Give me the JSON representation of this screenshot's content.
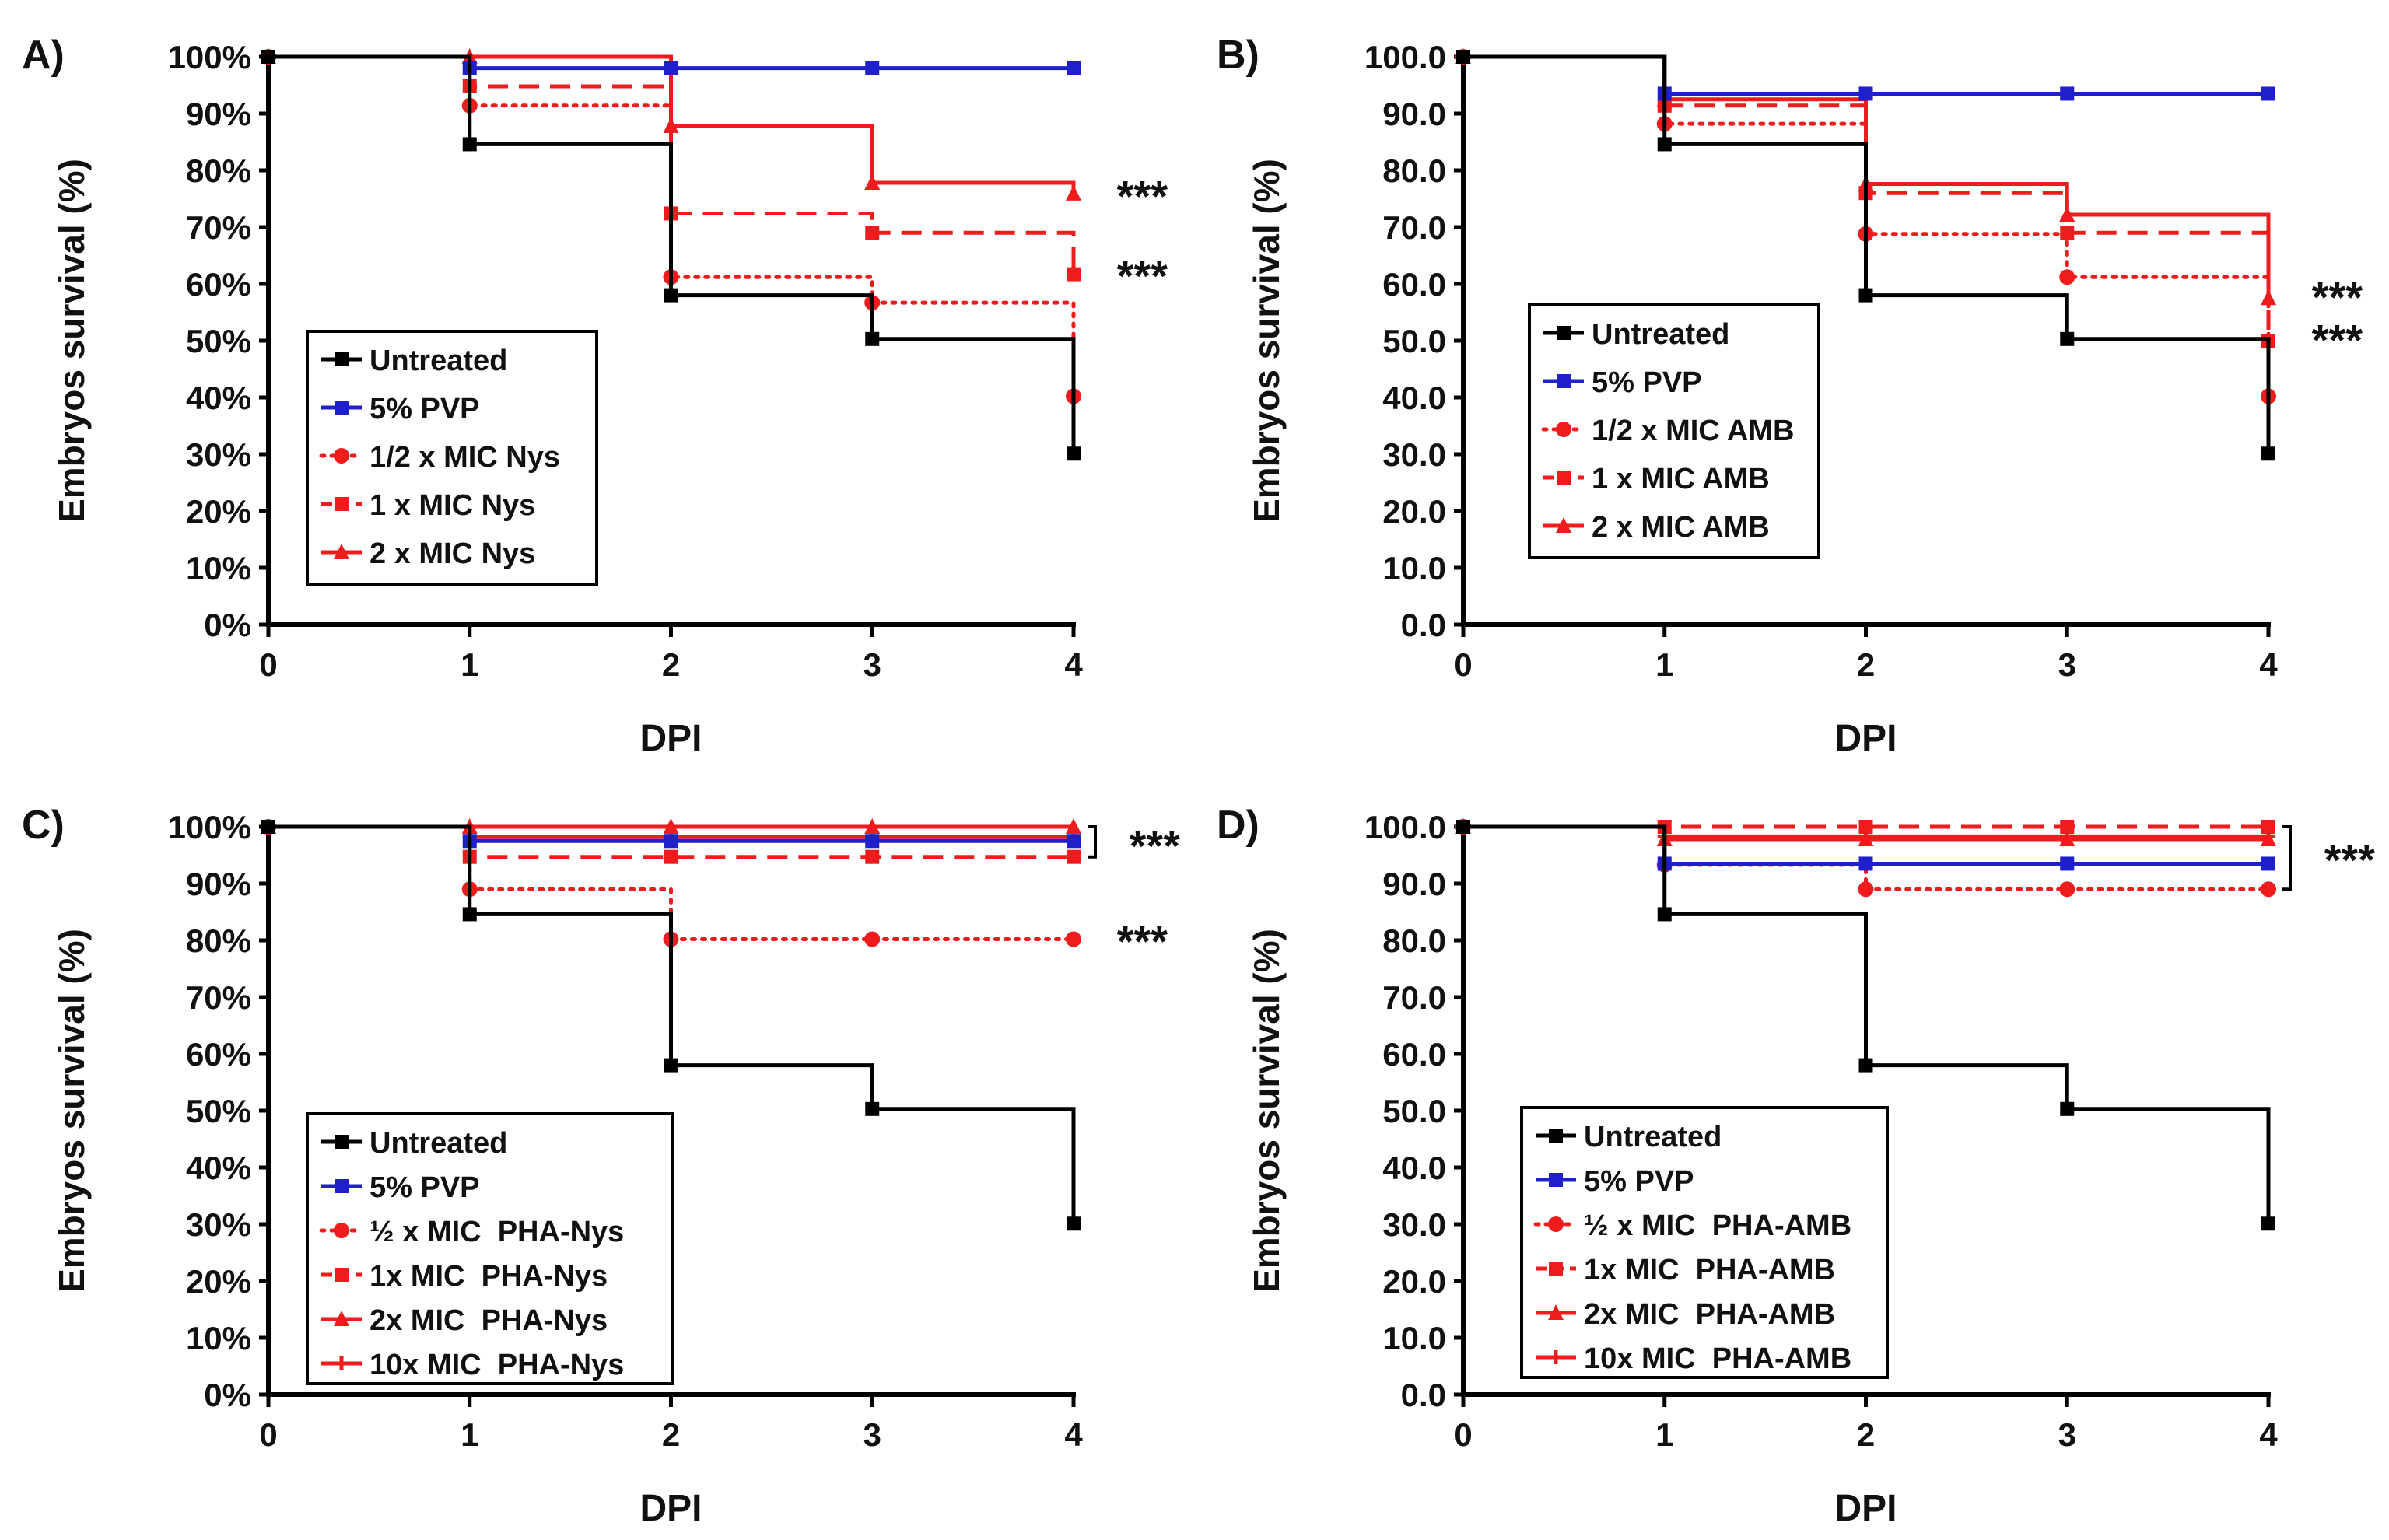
{
  "figure": {
    "panels": [
      {
        "letter": "A)",
        "ylabel": "Embryos survival (%)",
        "xlabel": "DPI",
        "ytick_format": "percent"
      },
      {
        "letter": "B)",
        "ylabel": "Embryos survival (%)",
        "xlabel": "DPI",
        "ytick_format": "decimal"
      },
      {
        "letter": "C)",
        "ylabel": "Embryos survival (%)",
        "xlabel": "DPI",
        "ytick_format": "percent"
      },
      {
        "letter": "D)",
        "ylabel": "Embryos survival (%)",
        "xlabel": "DPI",
        "ytick_format": "decimal"
      }
    ]
  },
  "colors": {
    "untreated": "#000000",
    "pvp": "#1f1fcc",
    "treated": "#ee1c1c"
  },
  "chart_data": [
    {
      "type": "line",
      "title": "",
      "panel_label": "A)",
      "xlabel": "DPI",
      "ylabel": "Embryos survival (%)",
      "xlim": [
        0,
        4
      ],
      "ylim": [
        0,
        100
      ],
      "xticks": [
        "0",
        "1",
        "2",
        "3",
        "4"
      ],
      "yticks": [
        "0%",
        "10%",
        "20%",
        "30%",
        "40%",
        "50%",
        "60%",
        "70%",
        "80%",
        "90%",
        "100%"
      ],
      "step": true,
      "legend_position": "lower-left",
      "annotations": [
        "***",
        "***"
      ],
      "series": [
        {
          "name": "Untreated",
          "color": "#000000",
          "style": "solid",
          "marker": "square",
          "x": [
            0,
            1,
            2,
            3,
            4
          ],
          "y": [
            100,
            84.6,
            58,
            50.3,
            30.1
          ]
        },
        {
          "name": "5% PVP",
          "color": "#1f1fcc",
          "style": "solid",
          "marker": "square",
          "x": [
            0,
            1,
            2,
            3,
            4
          ],
          "y": [
            100,
            98,
            98,
            98,
            98
          ]
        },
        {
          "name": "1/2 x MIC Nys",
          "color": "#ee1c1c",
          "style": "dotted",
          "marker": "circle",
          "x": [
            0,
            1,
            2,
            3,
            4
          ],
          "y": [
            100,
            91.4,
            61.2,
            56.7,
            40.2
          ]
        },
        {
          "name": "1 x MIC Nys",
          "color": "#ee1c1c",
          "style": "dashed",
          "marker": "square",
          "x": [
            0,
            1,
            2,
            3,
            4
          ],
          "y": [
            100,
            94.8,
            72.4,
            69,
            61.7
          ]
        },
        {
          "name": "2 x MIC Nys",
          "color": "#ee1c1c",
          "style": "solid",
          "marker": "triangle",
          "x": [
            0,
            1,
            2,
            3,
            4
          ],
          "y": [
            100,
            100,
            87.8,
            77.8,
            75.9
          ]
        }
      ]
    },
    {
      "type": "line",
      "title": "",
      "panel_label": "B)",
      "xlabel": "DPI",
      "ylabel": "Embryos survival (%)",
      "xlim": [
        0,
        4
      ],
      "ylim": [
        0,
        100
      ],
      "xticks": [
        "0",
        "1",
        "2",
        "3",
        "4"
      ],
      "yticks": [
        "0.0",
        "10.0",
        "20.0",
        "30.0",
        "40.0",
        "50.0",
        "60.0",
        "70.0",
        "80.0",
        "90.0",
        "100.0"
      ],
      "step": true,
      "legend_position": "lower-left",
      "annotations": [
        "***",
        "***"
      ],
      "series": [
        {
          "name": "Untreated",
          "color": "#000000",
          "style": "solid",
          "marker": "square",
          "x": [
            0,
            1,
            2,
            3,
            4
          ],
          "y": [
            100,
            84.6,
            58,
            50.3,
            30.1
          ]
        },
        {
          "name": "5% PVP",
          "color": "#1f1fcc",
          "style": "solid",
          "marker": "square",
          "x": [
            0,
            1,
            2,
            3,
            4
          ],
          "y": [
            100,
            93.5,
            93.5,
            93.5,
            93.5
          ]
        },
        {
          "name": "1/2 x MIC AMB",
          "color": "#ee1c1c",
          "style": "dotted",
          "marker": "circle",
          "x": [
            0,
            1,
            2,
            3,
            4
          ],
          "y": [
            100,
            88.2,
            68.8,
            61.2,
            40.2
          ]
        },
        {
          "name": "1 x MIC AMB",
          "color": "#ee1c1c",
          "style": "dashed",
          "marker": "square",
          "x": [
            0,
            1,
            2,
            3,
            4
          ],
          "y": [
            100,
            91.4,
            76,
            69,
            50
          ]
        },
        {
          "name": "2 x MIC AMB",
          "color": "#ee1c1c",
          "style": "solid",
          "marker": "triangle",
          "x": [
            0,
            1,
            2,
            3,
            4
          ],
          "y": [
            100,
            92.5,
            77.6,
            72.2,
            57.5
          ]
        }
      ]
    },
    {
      "type": "line",
      "title": "",
      "panel_label": "C)",
      "xlabel": "DPI",
      "ylabel": "Embryos survival (%)",
      "xlim": [
        0,
        4
      ],
      "ylim": [
        0,
        100
      ],
      "xticks": [
        "0",
        "1",
        "2",
        "3",
        "4"
      ],
      "yticks": [
        "0%",
        "10%",
        "20%",
        "30%",
        "40%",
        "50%",
        "60%",
        "70%",
        "80%",
        "90%",
        "100%"
      ],
      "step": true,
      "legend_position": "lower-left",
      "annotations": [
        "***",
        "***"
      ],
      "series": [
        {
          "name": "Untreated",
          "color": "#000000",
          "style": "solid",
          "marker": "square",
          "x": [
            0,
            1,
            2,
            3,
            4
          ],
          "y": [
            100,
            84.6,
            58,
            50.3,
            30.1
          ]
        },
        {
          "name": "5% PVP",
          "color": "#1f1fcc",
          "style": "solid",
          "marker": "square",
          "x": [
            0,
            1,
            2,
            3,
            4
          ],
          "y": [
            100,
            97.5,
            97.5,
            97.5,
            97.5
          ]
        },
        {
          "name": "½ x MIC  PHA-Nys",
          "color": "#ee1c1c",
          "style": "dotted",
          "marker": "circle",
          "x": [
            0,
            1,
            2,
            3,
            4
          ],
          "y": [
            100,
            89,
            80.2,
            80.2,
            80.2
          ]
        },
        {
          "name": "1x MIC  PHA-Nys",
          "color": "#ee1c1c",
          "style": "dashed",
          "marker": "square",
          "x": [
            0,
            1,
            2,
            3,
            4
          ],
          "y": [
            100,
            94.7,
            94.7,
            94.7,
            94.7
          ]
        },
        {
          "name": "2x MIC  PHA-Nys",
          "color": "#ee1c1c",
          "style": "solid",
          "marker": "triangle",
          "x": [
            0,
            1,
            2,
            3,
            4
          ],
          "y": [
            100,
            100,
            100,
            100,
            100
          ]
        },
        {
          "name": "10x MIC  PHA-Nys",
          "color": "#ee1c1c",
          "style": "solid",
          "marker": "plus",
          "x": [
            0,
            1,
            2,
            3,
            4
          ],
          "y": [
            100,
            98.2,
            98.2,
            98.2,
            98.2
          ]
        }
      ]
    },
    {
      "type": "line",
      "title": "",
      "panel_label": "D)",
      "xlabel": "DPI",
      "ylabel": "Embryos survival (%)",
      "xlim": [
        0,
        4
      ],
      "ylim": [
        0,
        100
      ],
      "xticks": [
        "0",
        "1",
        "2",
        "3",
        "4"
      ],
      "yticks": [
        "0.0",
        "10.0",
        "20.0",
        "30.0",
        "40.0",
        "50.0",
        "60.0",
        "70.0",
        "80.0",
        "90.0",
        "100.0"
      ],
      "step": true,
      "legend_position": "lower-left",
      "annotations": [
        "***"
      ],
      "series": [
        {
          "name": "Untreated",
          "color": "#000000",
          "style": "solid",
          "marker": "square",
          "x": [
            0,
            1,
            2,
            3,
            4
          ],
          "y": [
            100,
            84.6,
            58,
            50.3,
            30.1
          ]
        },
        {
          "name": "5% PVP",
          "color": "#1f1fcc",
          "style": "solid",
          "marker": "square",
          "x": [
            0,
            1,
            2,
            3,
            4
          ],
          "y": [
            100,
            93.5,
            93.5,
            93.5,
            93.5
          ]
        },
        {
          "name": "½ x MIC  PHA-AMB",
          "color": "#ee1c1c",
          "style": "dotted",
          "marker": "circle",
          "x": [
            0,
            1,
            2,
            3,
            4
          ],
          "y": [
            100,
            93.3,
            89,
            89,
            89
          ]
        },
        {
          "name": "1x MIC  PHA-AMB",
          "color": "#ee1c1c",
          "style": "dashed",
          "marker": "square",
          "x": [
            0,
            1,
            2,
            3,
            4
          ],
          "y": [
            100,
            100,
            100,
            100,
            100
          ]
        },
        {
          "name": "2x MIC  PHA-AMB",
          "color": "#ee1c1c",
          "style": "solid",
          "marker": "triangle",
          "x": [
            0,
            1,
            2,
            3,
            4
          ],
          "y": [
            100,
            97.8,
            97.8,
            97.8,
            97.8
          ]
        },
        {
          "name": "10x MIC  PHA-AMB",
          "color": "#ee1c1c",
          "style": "solid",
          "marker": "plus",
          "x": [
            0,
            1,
            2,
            3,
            4
          ],
          "y": [
            100,
            98.3,
            98.3,
            98.3,
            98.3
          ]
        }
      ]
    }
  ]
}
